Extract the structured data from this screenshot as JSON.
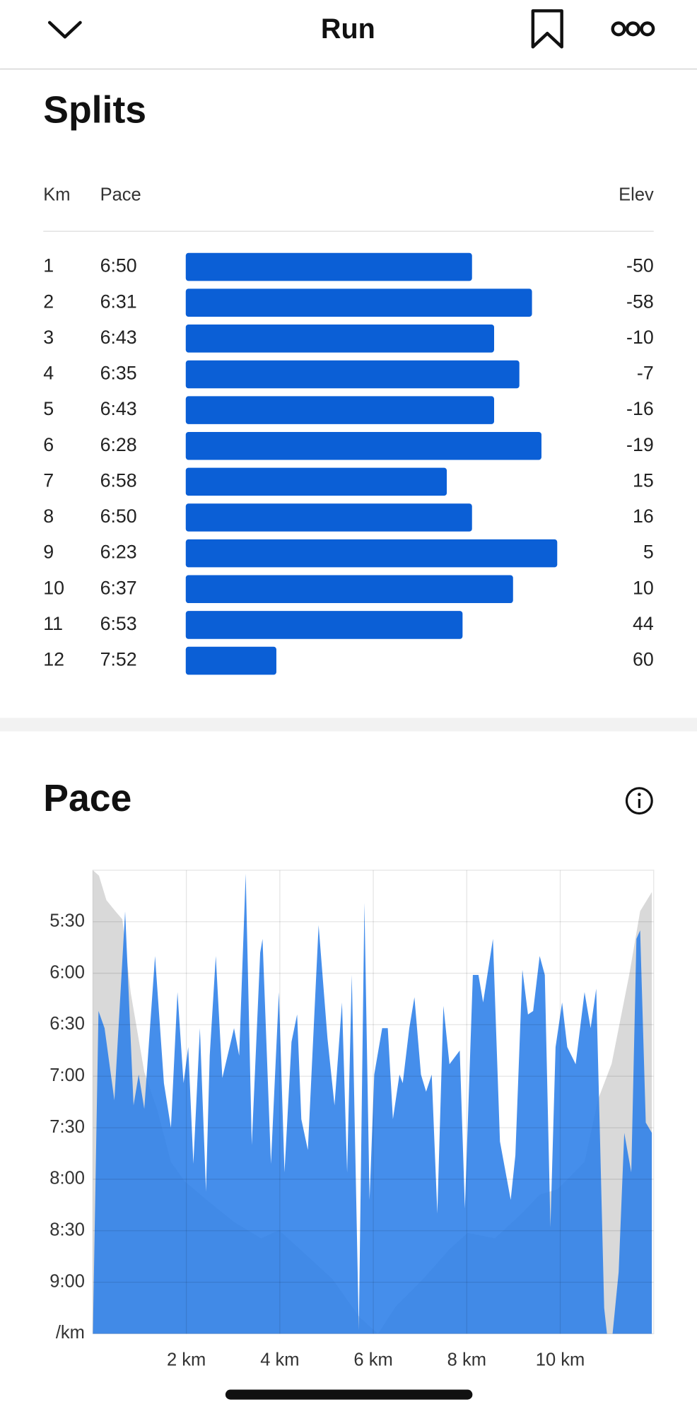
{
  "header": {
    "title": "Run"
  },
  "splits": {
    "title": "Splits",
    "headers": [
      "Km",
      "Pace",
      "Elev"
    ],
    "rows": [
      {
        "km": 1,
        "pace": "6:50",
        "elev": -50
      },
      {
        "km": 2,
        "pace": "6:31",
        "elev": -58
      },
      {
        "km": 3,
        "pace": "6:43",
        "elev": -10
      },
      {
        "km": 4,
        "pace": "6:35",
        "elev": -7
      },
      {
        "km": 5,
        "pace": "6:43",
        "elev": -16
      },
      {
        "km": 6,
        "pace": "6:28",
        "elev": -19
      },
      {
        "km": 7,
        "pace": "6:58",
        "elev": 15
      },
      {
        "km": 8,
        "pace": "6:50",
        "elev": 16
      },
      {
        "km": 9,
        "pace": "6:23",
        "elev": 5
      },
      {
        "km": 10,
        "pace": "6:37",
        "elev": 10
      },
      {
        "km": 11,
        "pace": "6:53",
        "elev": 44
      },
      {
        "km": 12,
        "pace": "7:52",
        "elev": 60
      }
    ]
  },
  "chart_data": {
    "type": "area",
    "title": "Pace",
    "y_unit": "/km",
    "xlim": [
      0,
      12
    ],
    "xticks": [
      {
        "value": 2,
        "label": "2 km"
      },
      {
        "value": 4,
        "label": "4 km"
      },
      {
        "value": 6,
        "label": "6 km"
      },
      {
        "value": 8,
        "label": "8 km"
      },
      {
        "value": 10,
        "label": "10 km"
      }
    ],
    "ylim": [
      300,
      570
    ],
    "y_inverted": true,
    "yticks": [
      {
        "value": 330,
        "label": "5:30"
      },
      {
        "value": 360,
        "label": "6:00"
      },
      {
        "value": 390,
        "label": "6:30"
      },
      {
        "value": 420,
        "label": "7:00"
      },
      {
        "value": 450,
        "label": "7:30"
      },
      {
        "value": 480,
        "label": "8:00"
      },
      {
        "value": 510,
        "label": "8:30"
      },
      {
        "value": 540,
        "label": "9:00"
      }
    ],
    "y2lim": [
      0,
      170
    ],
    "grid": true,
    "series": [
      {
        "color": "#d9d9d9",
        "axis": "y2",
        "x": [
          0,
          0.13,
          0.29,
          0.48,
          0.63,
          0.81,
          1.1,
          1.38,
          1.67,
          1.96,
          2.44,
          3.02,
          3.6,
          3.98,
          4.56,
          5.13,
          5.71,
          6.1,
          6.48,
          7.06,
          7.63,
          8.02,
          8.6,
          9.17,
          9.56,
          9.94,
          10.52,
          10.81,
          11.1,
          11.48,
          11.71,
          11.96
        ],
        "values": [
          170,
          168,
          159,
          155,
          152,
          125,
          96,
          82,
          63,
          56,
          49,
          41,
          35,
          38,
          29,
          20,
          6,
          0,
          10,
          20,
          31,
          37,
          35,
          44,
          51,
          53,
          63,
          86,
          99,
          132,
          155,
          162
        ]
      },
      {
        "color": "#2b7ee8",
        "x": [
          0,
          0.12,
          0.25,
          0.46,
          0.69,
          0.87,
          0.98,
          1.1,
          1.33,
          1.52,
          1.67,
          1.81,
          1.94,
          2.04,
          2.15,
          2.29,
          2.42,
          2.5,
          2.63,
          2.77,
          3.02,
          3.13,
          3.27,
          3.4,
          3.58,
          3.63,
          3.81,
          3.98,
          4.1,
          4.25,
          4.37,
          4.46,
          4.6,
          4.83,
          5.02,
          5.17,
          5.33,
          5.44,
          5.54,
          5.69,
          5.81,
          5.92,
          6.02,
          6.19,
          6.31,
          6.42,
          6.56,
          6.63,
          6.77,
          6.88,
          7.02,
          7.13,
          7.25,
          7.37,
          7.5,
          7.63,
          7.85,
          7.96,
          8.13,
          8.25,
          8.35,
          8.56,
          8.71,
          8.94,
          9.04,
          9.19,
          9.31,
          9.42,
          9.56,
          9.67,
          9.79,
          9.9,
          10.04,
          10.15,
          10.33,
          10.52,
          10.65,
          10.77,
          10.85,
          10.94,
          11.0,
          11.12,
          11.25,
          11.37,
          11.52,
          11.63,
          11.71,
          11.83,
          11.96
        ],
        "values": [
          570,
          382,
          392,
          434,
          324,
          437,
          419,
          439,
          350,
          424,
          450,
          371,
          424,
          403,
          471,
          392,
          487,
          408,
          350,
          421,
          392,
          408,
          302,
          460,
          348,
          340,
          471,
          371,
          476,
          400,
          384,
          445,
          463,
          332,
          398,
          437,
          377,
          476,
          361,
          568,
          319,
          492,
          419,
          392,
          392,
          445,
          419,
          424,
          392,
          374,
          419,
          429,
          419,
          500,
          379,
          413,
          405,
          497,
          361,
          361,
          377,
          340,
          458,
          492,
          466,
          358,
          384,
          382,
          350,
          361,
          508,
          403,
          377,
          403,
          413,
          371,
          392,
          369,
          455,
          555,
          570,
          570,
          534,
          453,
          476,
          340,
          335,
          447,
          453
        ]
      }
    ]
  }
}
